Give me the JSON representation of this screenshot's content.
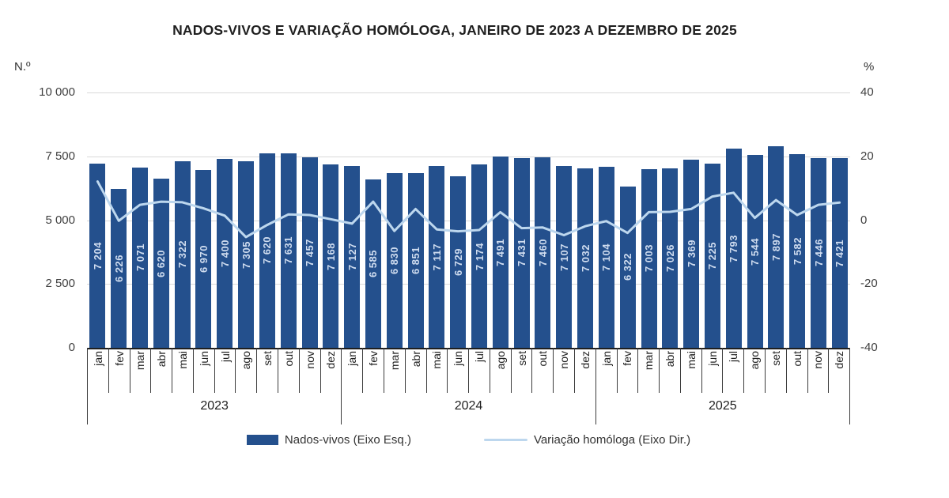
{
  "chart_data": {
    "type": "bar+line",
    "title": "NADOS-VIVOS E VARIAÇÃO HOMÓLOGA, JANEIRO DE 2023 A DEZEMBRO DE 2025",
    "left_axis": {
      "unit": "N.º",
      "tick_values": [
        0,
        2500,
        5000,
        7500,
        10000
      ],
      "tick_labels": [
        "0",
        "2 500",
        "5 000",
        "7 500",
        "10 000"
      ],
      "range": [
        0,
        10000
      ]
    },
    "right_axis": {
      "unit": "%",
      "tick_values": [
        -40,
        -20,
        0,
        20,
        40
      ],
      "tick_labels": [
        "-40",
        "-20",
        "0",
        "20",
        "40"
      ],
      "range": [
        -40,
        40
      ]
    },
    "months": [
      "jan",
      "fev",
      "mar",
      "abr",
      "mai",
      "jun",
      "jul",
      "ago",
      "set",
      "out",
      "nov",
      "dez"
    ],
    "years": [
      "2023",
      "2024",
      "2025"
    ],
    "grid": "horizontal",
    "legend_position": "bottom",
    "series": [
      {
        "name": "Nados-vivos (Eixo Esq.)",
        "type": "bar",
        "axis": "left",
        "color": "#24508D",
        "label_color": "#CFDCEF",
        "values": [
          7204,
          6226,
          7071,
          6620,
          7322,
          6970,
          7400,
          7305,
          7620,
          7631,
          7457,
          7168,
          7127,
          6585,
          6830,
          6851,
          7117,
          6729,
          7174,
          7491,
          7431,
          7460,
          7107,
          7032,
          7104,
          6322,
          7003,
          7026,
          7369,
          7225,
          7793,
          7544,
          7897,
          7582,
          7446,
          7421
        ],
        "labels": [
          "7 204",
          "6 226",
          "7 071",
          "6 620",
          "7 322",
          "6 970",
          "7 400",
          "7 305",
          "7 620",
          "7 631",
          "7 457",
          "7 168",
          "7 127",
          "6 585",
          "6 830",
          "6 851",
          "7 117",
          "6 729",
          "7 174",
          "7 491",
          "7 431",
          "7 460",
          "7 107",
          "7 032",
          "7 104",
          "6 322",
          "7 003",
          "7 026",
          "7 369",
          "7 225",
          "7 793",
          "7 544",
          "7 897",
          "7 582",
          "7 446",
          "7 421"
        ]
      },
      {
        "name": "Variação homóloga (Eixo Dir.)",
        "type": "line",
        "axis": "right",
        "color": "#BDD7EE",
        "values": [
          12.1,
          -0.2,
          4.8,
          5.8,
          5.6,
          3.7,
          1.4,
          -5.3,
          -1.5,
          1.8,
          1.6,
          0.3,
          -1.1,
          5.8,
          -3.4,
          3.5,
          -2.9,
          -3.5,
          -3.1,
          2.5,
          -2.5,
          -2.3,
          -4.7,
          -1.9,
          -0.3,
          -4.0,
          2.5,
          2.6,
          3.5,
          7.4,
          8.6,
          0.7,
          6.3,
          1.6,
          4.8,
          5.5
        ]
      }
    ]
  }
}
